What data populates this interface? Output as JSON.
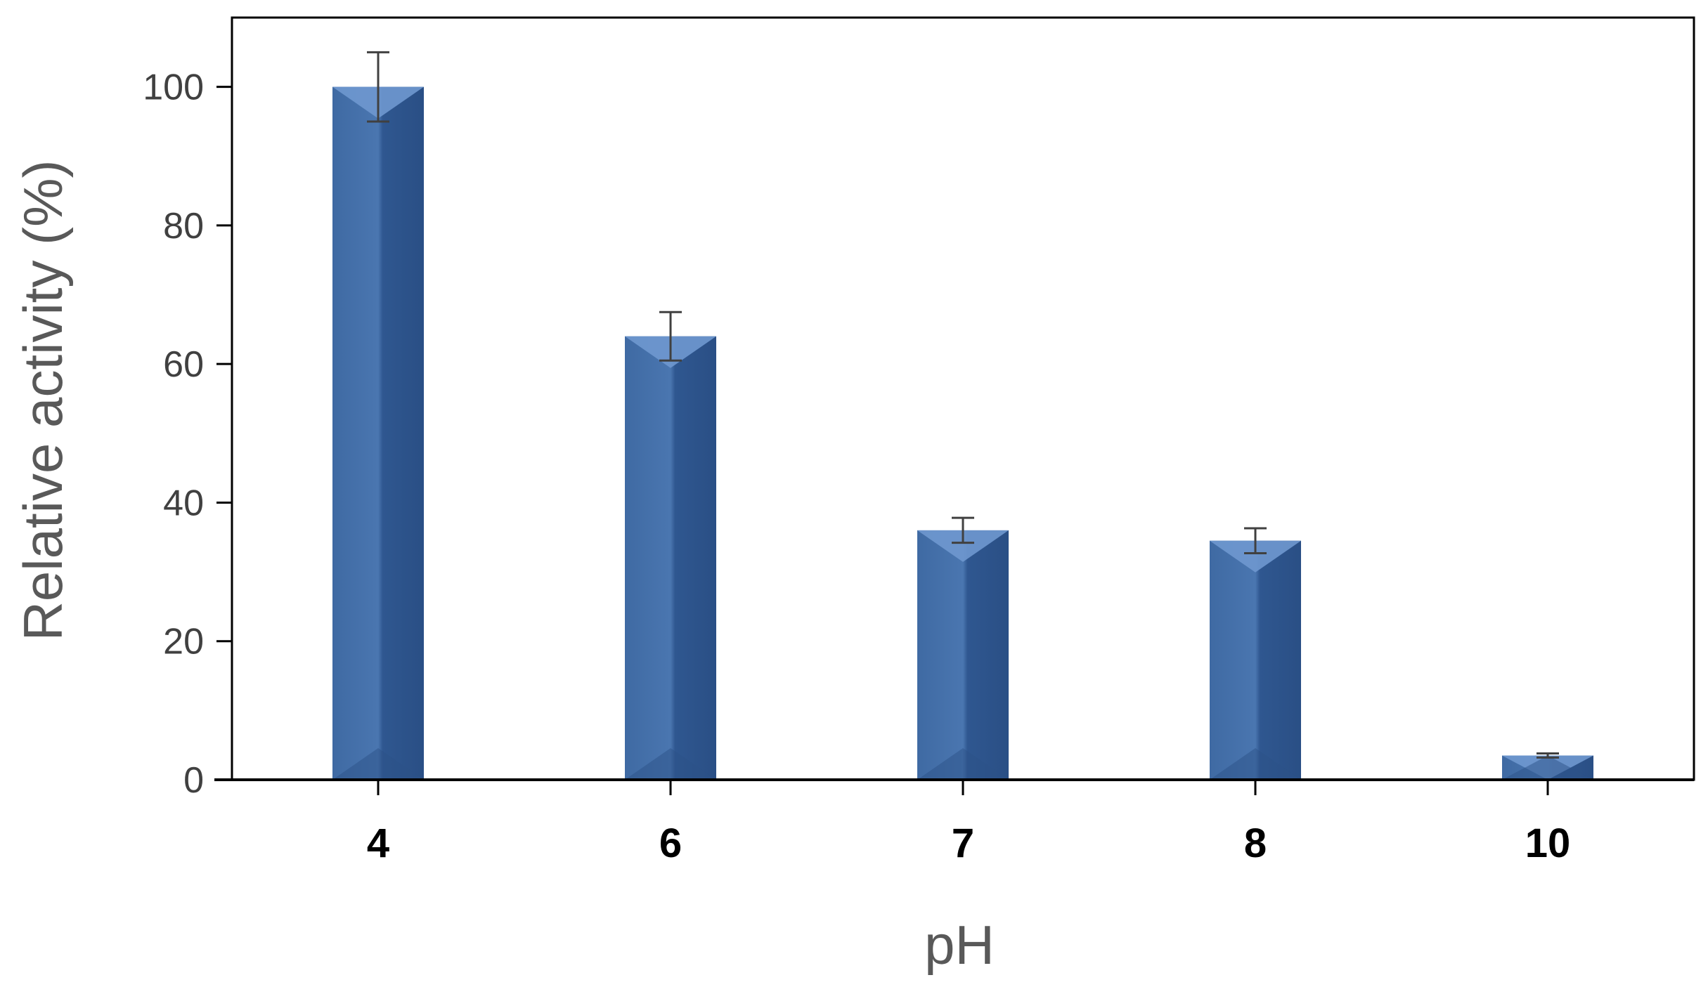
{
  "chart_data": {
    "type": "bar",
    "categories": [
      "4",
      "6",
      "7",
      "8",
      "10"
    ],
    "series": [
      {
        "values": [
          100,
          64,
          36,
          34.5,
          3.5
        ],
        "errors": [
          5,
          3.5,
          1.8,
          1.8,
          0.3
        ]
      }
    ],
    "xlabel": "pH",
    "ylabel": "Relative activity  (%)",
    "ylim": [
      0,
      110
    ],
    "yticks": [
      0,
      20,
      40,
      60,
      80,
      100
    ],
    "grid": false,
    "legend": "none",
    "colors": {
      "bar": "#3f6aa3",
      "bar_dark": "#2c5287",
      "bar_light": "#6f98cf",
      "axis": "#000000",
      "error_bar": "#404040"
    }
  }
}
